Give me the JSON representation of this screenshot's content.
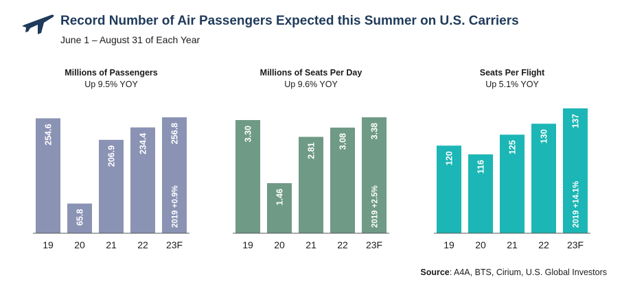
{
  "header": {
    "title": "Record Number of Air Passengers Expected this Summer on U.S. Carriers",
    "subtitle": "June 1 – August  31 of Each Year",
    "icon": "airplane-icon"
  },
  "source": {
    "label": "Source",
    "text": ": A4A, BTS, Cirium, U.S. Global Investors"
  },
  "colors": {
    "passengers": "#8a93b4",
    "seats_per_day": "#6f9a86",
    "seats_per_flight": "#1bb6b5",
    "title": "#1f3a5a"
  },
  "chart_data": [
    {
      "type": "bar",
      "title": "Millions of Passengers",
      "subtitle": "Up 9.5% YOY",
      "categories": [
        "19",
        "20",
        "21",
        "22",
        "23F"
      ],
      "values": [
        254.6,
        65.8,
        206.9,
        234.4,
        256.8
      ],
      "labels": [
        "254.6",
        "65.8",
        "206.9",
        "234.4",
        "256.8"
      ],
      "annotation": {
        "category": "23F",
        "text": "2019 +0.9%"
      },
      "ylim": [
        0,
        256.8
      ]
    },
    {
      "type": "bar",
      "title": "Millions of Seats Per Day",
      "subtitle": "Up 9.6% YOY",
      "categories": [
        "19",
        "20",
        "21",
        "22",
        "23F"
      ],
      "values": [
        3.3,
        1.46,
        2.81,
        3.08,
        3.38
      ],
      "labels": [
        "3.30",
        "1.46",
        "2.81",
        "3.08",
        "3.38"
      ],
      "annotation": {
        "category": "23F",
        "text": "2019 +2.5%"
      },
      "ylim": [
        0,
        3.38
      ]
    },
    {
      "type": "bar",
      "title": "Seats Per Flight",
      "subtitle": "Up 5.1% YOY",
      "categories": [
        "19",
        "20",
        "21",
        "22",
        "23F"
      ],
      "values": [
        120,
        116,
        125,
        130,
        137
      ],
      "labels": [
        "120",
        "116",
        "125",
        "130",
        "137"
      ],
      "annotation": {
        "category": "23F",
        "text": "2019 +14.1%"
      },
      "ylim": [
        80,
        137
      ]
    }
  ]
}
